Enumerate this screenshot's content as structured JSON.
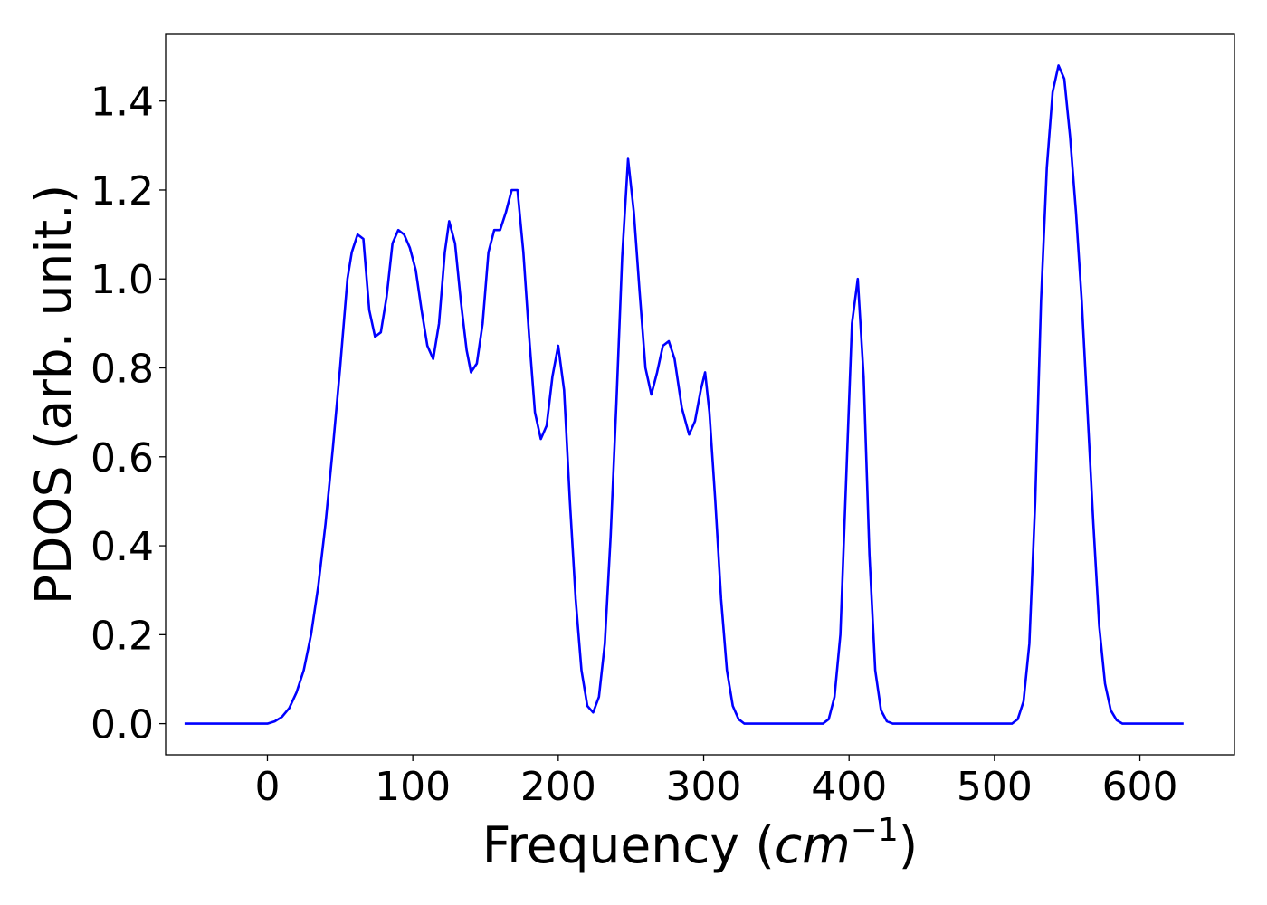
{
  "chart_data": {
    "type": "line",
    "title": "",
    "xlabel_prefix": "Frequency (",
    "xlabel_math": "cm",
    "xlabel_sup": "−1",
    "xlabel_suffix": ")",
    "ylabel": "PDOS (arb. unit.)",
    "xlim": [
      -70,
      665
    ],
    "ylim": [
      -0.07,
      1.55
    ],
    "x_ticks": [
      0,
      100,
      200,
      300,
      400,
      500,
      600
    ],
    "y_ticks": [
      0.0,
      0.2,
      0.4,
      0.6,
      0.8,
      1.0,
      1.2,
      1.4
    ],
    "x_tick_labels": [
      "0",
      "100",
      "200",
      "300",
      "400",
      "500",
      "600"
    ],
    "y_tick_labels": [
      "0.0",
      "0.2",
      "0.4",
      "0.6",
      "0.8",
      "1.0",
      "1.2",
      "1.4"
    ],
    "grid": false,
    "line_color": "#0000ff",
    "series": [
      {
        "x": [
          -57,
          0,
          5,
          10,
          15,
          20,
          25,
          30,
          35,
          40,
          45,
          50,
          55,
          58,
          62,
          66,
          70,
          74,
          78,
          82,
          86,
          90,
          94,
          98,
          102,
          106,
          110,
          114,
          118,
          122,
          125,
          129,
          133,
          137,
          140,
          144,
          148,
          152,
          156,
          160,
          164,
          168,
          172,
          176,
          180,
          184,
          188,
          192,
          196,
          200,
          204,
          208,
          212,
          216,
          220,
          224,
          228,
          232,
          236,
          240,
          244,
          248,
          252,
          256,
          260,
          264,
          268,
          272,
          276,
          280,
          285,
          290,
          294,
          298,
          301,
          304,
          308,
          312,
          316,
          320,
          324,
          328,
          382,
          386,
          390,
          394,
          398,
          402,
          406,
          410,
          414,
          418,
          422,
          426,
          430,
          512,
          516,
          520,
          524,
          528,
          532,
          536,
          540,
          544,
          548,
          552,
          556,
          560,
          564,
          568,
          572,
          576,
          580,
          584,
          588,
          592,
          630
        ],
        "y": [
          0.0,
          0.0,
          0.005,
          0.015,
          0.035,
          0.07,
          0.12,
          0.2,
          0.31,
          0.45,
          0.62,
          0.8,
          1.0,
          1.06,
          1.1,
          1.09,
          0.93,
          0.87,
          0.88,
          0.96,
          1.08,
          1.11,
          1.1,
          1.07,
          1.02,
          0.93,
          0.85,
          0.82,
          0.9,
          1.06,
          1.13,
          1.08,
          0.95,
          0.84,
          0.79,
          0.81,
          0.9,
          1.06,
          1.11,
          1.11,
          1.15,
          1.2,
          1.2,
          1.06,
          0.87,
          0.7,
          0.64,
          0.67,
          0.78,
          0.85,
          0.75,
          0.5,
          0.28,
          0.12,
          0.04,
          0.025,
          0.06,
          0.18,
          0.42,
          0.72,
          1.05,
          1.27,
          1.15,
          0.97,
          0.8,
          0.74,
          0.79,
          0.85,
          0.86,
          0.82,
          0.71,
          0.65,
          0.68,
          0.75,
          0.79,
          0.7,
          0.5,
          0.28,
          0.12,
          0.04,
          0.01,
          0.0,
          0.0,
          0.01,
          0.06,
          0.2,
          0.55,
          0.9,
          1.0,
          0.78,
          0.38,
          0.12,
          0.03,
          0.005,
          0.0,
          0.0,
          0.01,
          0.05,
          0.18,
          0.5,
          0.95,
          1.25,
          1.42,
          1.48,
          1.45,
          1.32,
          1.15,
          0.95,
          0.7,
          0.45,
          0.22,
          0.09,
          0.03,
          0.008,
          0.0,
          0.0,
          0.0
        ]
      }
    ]
  }
}
